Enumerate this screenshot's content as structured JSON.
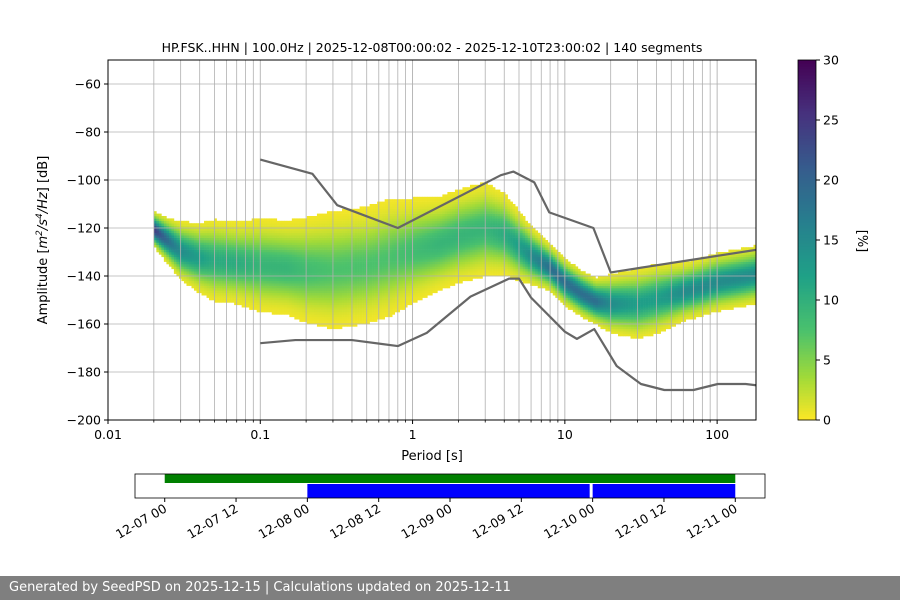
{
  "chart_data": {
    "type": "heatmap",
    "title": "HP.FSK..HHN | 100.0Hz | 2025-12-08T00:00:02 - 2025-12-10T23:00:02 | 140 segments",
    "xlabel": "Period [s]",
    "ylabel_parts": [
      "Amplitude [",
      "m",
      "2",
      "/s",
      "4",
      "/Hz",
      "] [dB]"
    ],
    "x_scale": "log",
    "xlim": [
      0.01,
      180
    ],
    "ylim": [
      -200,
      -50
    ],
    "x_tick_labels": [
      "0.01",
      "0.1",
      "1",
      "10",
      "100"
    ],
    "x_tick_values": [
      0.01,
      0.1,
      1,
      10,
      100
    ],
    "y_tick_labels": [
      "−200",
      "−180",
      "−160",
      "−140",
      "−120",
      "−100",
      "−80",
      "−60"
    ],
    "y_tick_values": [
      -200,
      -180,
      -160,
      -140,
      -120,
      -100,
      -80,
      -60
    ],
    "grid": true,
    "colorbar": {
      "label": "[%]",
      "min": 0,
      "max": 30,
      "tick_labels": [
        "0",
        "5",
        "10",
        "15",
        "20",
        "25",
        "30"
      ],
      "tick_values": [
        0,
        5,
        10,
        15,
        20,
        25,
        30
      ],
      "colormap": "viridis_r"
    },
    "density_band": {
      "period": [
        0.02,
        0.025,
        0.03,
        0.04,
        0.05,
        0.07,
        0.1,
        0.15,
        0.2,
        0.3,
        0.5,
        0.7,
        1,
        1.5,
        2,
        3,
        4,
        5,
        6,
        8,
        10,
        13,
        16,
        20,
        30,
        40,
        60,
        80,
        100,
        150,
        180
      ],
      "mode_db": [
        -121,
        -126,
        -130,
        -133,
        -134,
        -135,
        -136,
        -137,
        -138,
        -138,
        -136,
        -133,
        -130,
        -127,
        -124,
        -121,
        -123,
        -128,
        -132,
        -137,
        -143,
        -148,
        -151,
        -152,
        -152,
        -150,
        -147,
        -145,
        -143,
        -141,
        -140
      ],
      "spread_db": [
        3,
        4,
        5,
        6,
        7,
        7,
        8,
        8,
        9,
        10,
        10,
        10,
        9,
        8,
        8,
        8,
        7,
        6,
        5,
        4,
        4,
        4,
        4,
        5,
        6,
        6,
        5,
        5,
        5,
        5,
        5
      ]
    },
    "noise_models": [
      {
        "period": [
          0.1,
          0.22,
          0.32,
          0.8,
          3.8,
          4.6,
          6.3,
          7.9,
          15.4,
          20,
          354.8
        ],
        "db": [
          -91.5,
          -97.4,
          -110.5,
          -120,
          -98,
          -96.5,
          -101,
          -113.5,
          -120,
          -138.5,
          -126.2
        ]
      },
      {
        "period": [
          0.1,
          0.17,
          0.4,
          0.8,
          1.24,
          2.4,
          4.3,
          5,
          6,
          10,
          12,
          15.6,
          21.9,
          31.6,
          45,
          70,
          101,
          154,
          328
        ],
        "db": [
          -168,
          -166.7,
          -166.7,
          -169.2,
          -163.7,
          -148.6,
          -141.1,
          -141.1,
          -149,
          -163.2,
          -166.2,
          -162.1,
          -177.5,
          -185,
          -187.5,
          -187.5,
          -185,
          -185,
          -187.5
        ]
      }
    ]
  },
  "timeline": {
    "tick_labels": [
      "12-07 00",
      "12-07 12",
      "12-08 00",
      "12-08 12",
      "12-09 00",
      "12-09 12",
      "12-10 00",
      "12-10 12",
      "12-11 00"
    ],
    "tick_hours": [
      0,
      12,
      24,
      36,
      48,
      60,
      72,
      84,
      96
    ],
    "range_hours": [
      -5,
      101
    ],
    "available_data": {
      "start_hour": 0,
      "end_hour": 96,
      "color": "#008000"
    },
    "used_segments": [
      {
        "start_hour": 24,
        "end_hour": 71.5,
        "color": "#0000ff"
      },
      {
        "start_hour": 72,
        "end_hour": 96,
        "color": "#0000ff"
      }
    ]
  },
  "footer": {
    "text": "Generated by SeedPSD on 2025-12-15 | Calculations updated on 2025-12-11"
  }
}
